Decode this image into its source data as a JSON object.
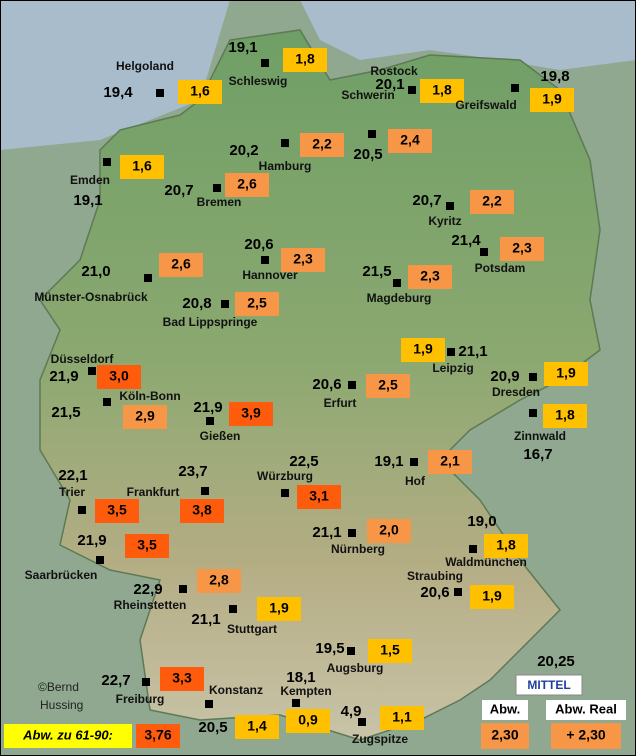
{
  "stations": [
    {
      "name": "Helgoland",
      "temp": "19,4",
      "dev": "1,6"
    },
    {
      "name": "Schleswig",
      "temp": "19,1",
      "dev": "1,8"
    },
    {
      "name": "Rostock",
      "temp": "20,1",
      "dev": "1,8"
    },
    {
      "name": "Greifswald",
      "temp": "19,8",
      "dev": "1,9"
    },
    {
      "name": "Schwerin",
      "temp": "20,5",
      "dev": "2,4"
    },
    {
      "name": "Hamburg",
      "temp": "20,2",
      "dev": "2,2"
    },
    {
      "name": "Emden",
      "temp": "19,1",
      "dev": "1,6"
    },
    {
      "name": "Bremen",
      "temp": "20,7",
      "dev": "2,6"
    },
    {
      "name": "Kyritz",
      "temp": "20,7",
      "dev": "2,2"
    },
    {
      "name": "Hannover",
      "temp": "20,6",
      "dev": "2,3"
    },
    {
      "name": "Potsdam",
      "temp": "21,4",
      "dev": "2,3"
    },
    {
      "name": "Münster-Osnabrück",
      "temp": "21,0",
      "dev": "2,6"
    },
    {
      "name": "Magdeburg",
      "temp": "21,5",
      "dev": "2,3"
    },
    {
      "name": "Bad Lippspringe",
      "temp": "20,8",
      "dev": "2,5"
    },
    {
      "name": "Leipzig",
      "temp": "21,1",
      "dev": "1,9"
    },
    {
      "name": "Düsseldorf",
      "temp": "21,9",
      "dev": "3,0"
    },
    {
      "name": "Dresden",
      "temp": "20,9",
      "dev": "1,9"
    },
    {
      "name": "Erfurt",
      "temp": "20,6",
      "dev": "2,5"
    },
    {
      "name": "Köln-Bonn",
      "temp": "21,5",
      "dev": "2,9"
    },
    {
      "name": "Gießen",
      "temp": "21,9",
      "dev": "3,9"
    },
    {
      "name": "Zinnwald",
      "temp": "16,7",
      "dev": "1,8"
    },
    {
      "name": "Hof",
      "temp": "19,1",
      "dev": "2,1"
    },
    {
      "name": "Trier",
      "temp": "22,1",
      "dev": "3,5"
    },
    {
      "name": "Frankfurt",
      "temp": "23,7",
      "dev": "3,8"
    },
    {
      "name": "Würzburg",
      "temp": "22,5",
      "dev": "3,1"
    },
    {
      "name": "Nürnberg",
      "temp": "21,1",
      "dev": "2,0"
    },
    {
      "name": "Waldmünchen",
      "temp": "19,0",
      "dev": "1,8"
    },
    {
      "name": "Saarbrücken",
      "temp": "21,9",
      "dev": "3,5"
    },
    {
      "name": "Rheinstetten",
      "temp": "22,9",
      "dev": "2,8"
    },
    {
      "name": "Straubing",
      "temp": "20,6",
      "dev": "1,9"
    },
    {
      "name": "Stuttgart",
      "temp": "21,1",
      "dev": "1,9"
    },
    {
      "name": "Augsburg",
      "temp": "19,5",
      "dev": "1,5"
    },
    {
      "name": "Freiburg",
      "temp": "22,7",
      "dev": "3,3"
    },
    {
      "name": "Konstanz",
      "temp": "20,5",
      "dev": "1,4"
    },
    {
      "name": "Kempten",
      "temp": "18,1",
      "dev": "0,9"
    },
    {
      "name": "Zugspitze",
      "temp": "4,9",
      "dev": "1,1"
    }
  ],
  "legend": {
    "period_label": "Abw. zu 61-90:",
    "period_value": "3,76",
    "mean_label": "MITTEL",
    "mean_temp": "20,25",
    "dev_label": "Abw.",
    "dev_value": "2,30",
    "real_label": "Abw. Real",
    "real_value": "+ 2,30"
  },
  "copyright": [
    "©Bernd",
    "Hussing"
  ]
}
